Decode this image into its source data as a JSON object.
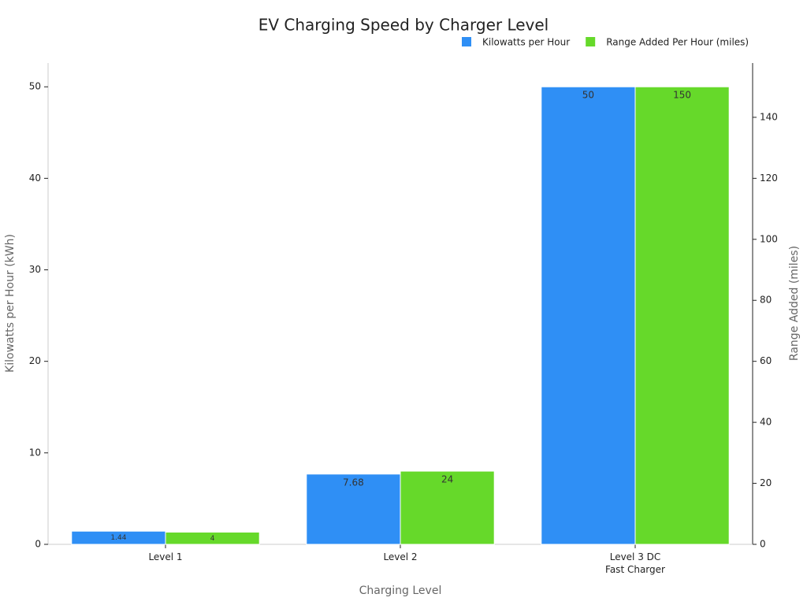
{
  "chart_data": {
    "type": "bar",
    "title": "EV Charging Speed by Charger Level",
    "x_label": "Charging Level",
    "y_label": "Kilowatts per Hour (kWh)",
    "y2_label": "Range Added (miles)",
    "categories": [
      "Level 1",
      "Level 2",
      "Level 3 DC\nFast Charger"
    ],
    "series": [
      {
        "name": "Kilowatts per Hour",
        "color": "#2f8ff5",
        "values": [
          1.44,
          7.68,
          50
        ]
      },
      {
        "name": "Range Added Per Hour (miles)",
        "color": "#66d92a",
        "values": [
          4,
          24,
          150
        ],
        "axis": "y2"
      }
    ],
    "ylim": [
      0,
      52.6
    ],
    "yticks": [
      0,
      10,
      20,
      30,
      40,
      50
    ],
    "y2lim": [
      0,
      157.8
    ],
    "y2ticks": [
      0,
      20,
      40,
      60,
      80,
      100,
      120,
      140
    ],
    "legend": "top-right",
    "grid": false
  }
}
